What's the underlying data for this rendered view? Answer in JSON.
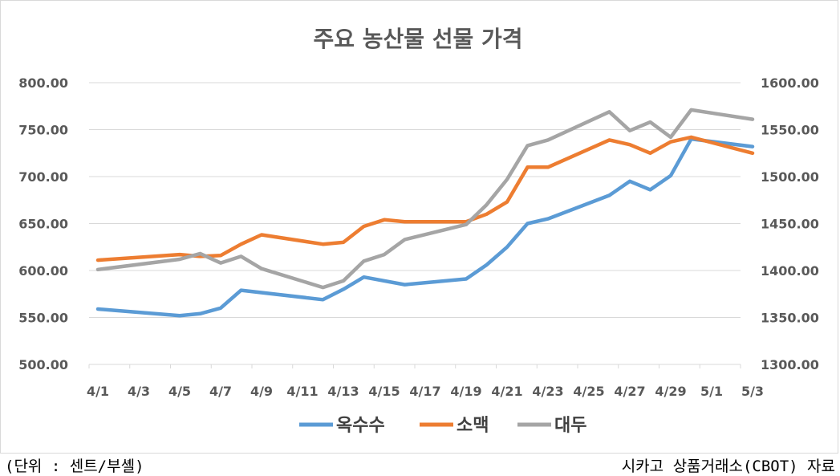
{
  "chart_data": {
    "type": "line",
    "title": "주요 농산물 선물 가격",
    "xlabel": "",
    "ylabel": "",
    "x_tick_labels": [
      "4/1",
      "4/3",
      "4/5",
      "4/7",
      "4/9",
      "4/11",
      "4/13",
      "4/15",
      "4/17",
      "4/19",
      "4/21",
      "4/23",
      "4/25",
      "4/27",
      "4/29",
      "5/1",
      "5/3"
    ],
    "y_left": {
      "ticks": [
        "500.00",
        "550.00",
        "600.00",
        "650.00",
        "700.00",
        "750.00",
        "800.00"
      ],
      "ylim": [
        500,
        800
      ]
    },
    "y_right": {
      "ticks": [
        "1300.00",
        "1350.00",
        "1400.00",
        "1450.00",
        "1500.00",
        "1550.00",
        "1600.00"
      ],
      "ylim": [
        1300,
        1600
      ]
    },
    "grid": true,
    "legend_position": "bottom",
    "series": [
      {
        "name": "옥수수",
        "color": "#5b9bd5",
        "axis": "left",
        "points": [
          {
            "x": "4/1",
            "y": 559
          },
          {
            "x": "4/5",
            "y": 552
          },
          {
            "x": "4/6",
            "y": 554
          },
          {
            "x": "4/7",
            "y": 560
          },
          {
            "x": "4/8",
            "y": 579
          },
          {
            "x": "4/12",
            "y": 569
          },
          {
            "x": "4/13",
            "y": 580
          },
          {
            "x": "4/14",
            "y": 593
          },
          {
            "x": "4/16",
            "y": 585
          },
          {
            "x": "4/19",
            "y": 591
          },
          {
            "x": "4/20",
            "y": 606
          },
          {
            "x": "4/21",
            "y": 625
          },
          {
            "x": "4/22",
            "y": 650
          },
          {
            "x": "4/23",
            "y": 655
          },
          {
            "x": "4/26",
            "y": 680
          },
          {
            "x": "4/27",
            "y": 695
          },
          {
            "x": "4/28",
            "y": 686
          },
          {
            "x": "4/29",
            "y": 701
          },
          {
            "x": "4/30",
            "y": 740
          },
          {
            "x": "5/3",
            "y": 732
          }
        ]
      },
      {
        "name": "소맥",
        "color": "#ed7d31",
        "axis": "left",
        "points": [
          {
            "x": "4/1",
            "y": 611
          },
          {
            "x": "4/5",
            "y": 617
          },
          {
            "x": "4/6",
            "y": 615
          },
          {
            "x": "4/7",
            "y": 616
          },
          {
            "x": "4/8",
            "y": 628
          },
          {
            "x": "4/9",
            "y": 638
          },
          {
            "x": "4/12",
            "y": 628
          },
          {
            "x": "4/13",
            "y": 630
          },
          {
            "x": "4/14",
            "y": 647
          },
          {
            "x": "4/15",
            "y": 654
          },
          {
            "x": "4/16",
            "y": 652
          },
          {
            "x": "4/19",
            "y": 652
          },
          {
            "x": "4/20",
            "y": 660
          },
          {
            "x": "4/21",
            "y": 673
          },
          {
            "x": "4/22",
            "y": 710
          },
          {
            "x": "4/23",
            "y": 710
          },
          {
            "x": "4/26",
            "y": 739
          },
          {
            "x": "4/27",
            "y": 734
          },
          {
            "x": "4/28",
            "y": 725
          },
          {
            "x": "4/29",
            "y": 737
          },
          {
            "x": "4/30",
            "y": 742
          },
          {
            "x": "5/3",
            "y": 725
          }
        ]
      },
      {
        "name": "대두",
        "color": "#a5a5a5",
        "axis": "right",
        "points": [
          {
            "x": "4/1",
            "y": 1401
          },
          {
            "x": "4/5",
            "y": 1412
          },
          {
            "x": "4/6",
            "y": 1418
          },
          {
            "x": "4/7",
            "y": 1408
          },
          {
            "x": "4/8",
            "y": 1415
          },
          {
            "x": "4/9",
            "y": 1402
          },
          {
            "x": "4/12",
            "y": 1382
          },
          {
            "x": "4/13",
            "y": 1389
          },
          {
            "x": "4/14",
            "y": 1410
          },
          {
            "x": "4/15",
            "y": 1417
          },
          {
            "x": "4/16",
            "y": 1433
          },
          {
            "x": "4/19",
            "y": 1449
          },
          {
            "x": "4/20",
            "y": 1470
          },
          {
            "x": "4/21",
            "y": 1497
          },
          {
            "x": "4/22",
            "y": 1533
          },
          {
            "x": "4/23",
            "y": 1539
          },
          {
            "x": "4/26",
            "y": 1569
          },
          {
            "x": "4/27",
            "y": 1549
          },
          {
            "x": "4/28",
            "y": 1558
          },
          {
            "x": "4/29",
            "y": 1542
          },
          {
            "x": "4/30",
            "y": 1571
          },
          {
            "x": "5/3",
            "y": 1561
          }
        ]
      }
    ]
  },
  "footer": {
    "left": "(단위 : 센트/부셸)",
    "right": "시카고 상품거래소(CBOT) 자료"
  }
}
